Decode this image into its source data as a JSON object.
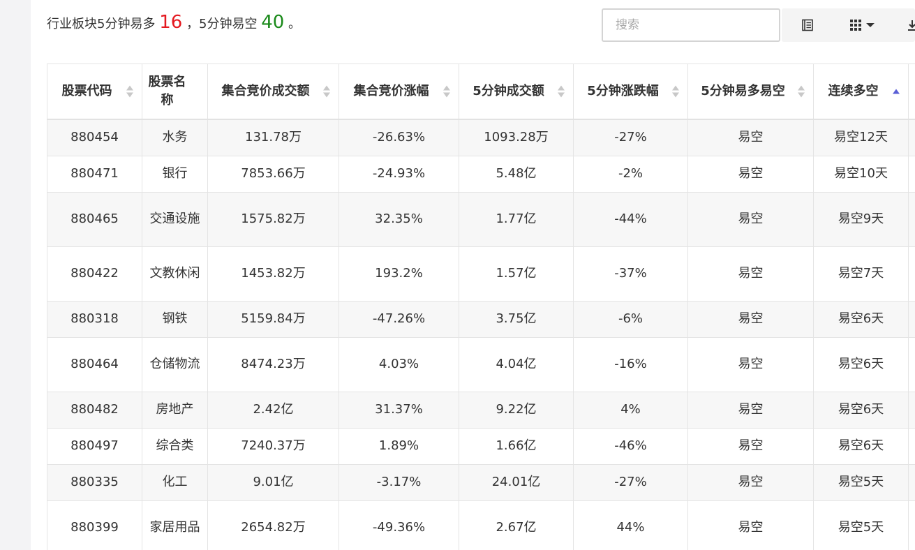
{
  "summary": {
    "prefix": "行业板块5分钟易多",
    "long_count": "16",
    "middle": "，5分钟易空",
    "short_count": "40",
    "suffix": "。"
  },
  "search": {
    "placeholder": "搜索"
  },
  "toolbar": {
    "icons": [
      "list-view-icon",
      "grid-columns-icon",
      "dropdown-caret-icon",
      "export-icon"
    ]
  },
  "colors": {
    "long": "#e4181f",
    "short": "#1a8a1a",
    "sort_active": "#5a5fd6"
  },
  "table": {
    "columns": [
      "股票代码",
      "股票名称",
      "集合竞价成交额",
      "集合竞价涨幅",
      "5分钟成交额",
      "5分钟涨跌幅",
      "5分钟易多易空",
      "连续多空"
    ],
    "sorted_column": "连续多空",
    "sort_direction": "ascending",
    "rows": [
      [
        "880454",
        "水务",
        "131.78万",
        "-26.63%",
        "1093.28万",
        "-27%",
        "易空",
        "易空12天"
      ],
      [
        "880471",
        "银行",
        "7853.66万",
        "-24.93%",
        "5.48亿",
        "-2%",
        "易空",
        "易空10天"
      ],
      [
        "880465",
        "交通设施",
        "1575.82万",
        "32.35%",
        "1.77亿",
        "-44%",
        "易空",
        "易空9天"
      ],
      [
        "880422",
        "文教休闲",
        "1453.82万",
        "193.2%",
        "1.57亿",
        "-37%",
        "易空",
        "易空7天"
      ],
      [
        "880318",
        "钢铁",
        "5159.84万",
        "-47.26%",
        "3.75亿",
        "-6%",
        "易空",
        "易空6天"
      ],
      [
        "880464",
        "仓储物流",
        "8474.23万",
        "4.03%",
        "4.04亿",
        "-16%",
        "易空",
        "易空6天"
      ],
      [
        "880482",
        "房地产",
        "2.42亿",
        "31.37%",
        "9.22亿",
        "4%",
        "易空",
        "易空6天"
      ],
      [
        "880497",
        "综合类",
        "7240.37万",
        "1.89%",
        "1.66亿",
        "-46%",
        "易空",
        "易空6天"
      ],
      [
        "880335",
        "化工",
        "9.01亿",
        "-3.17%",
        "24.01亿",
        "-27%",
        "易空",
        "易空5天"
      ],
      [
        "880399",
        "家居用品",
        "2654.82万",
        "-49.36%",
        "2.67亿",
        "44%",
        "易空",
        "易空5天"
      ]
    ]
  }
}
